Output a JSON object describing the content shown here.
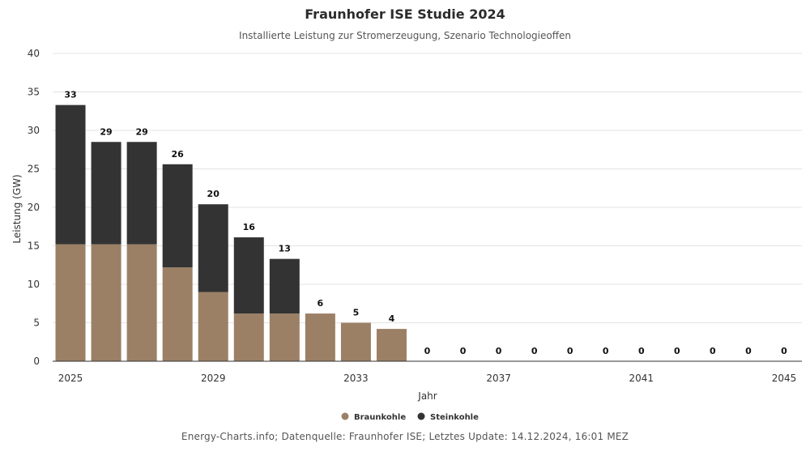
{
  "chart_data": {
    "type": "bar",
    "stacked": true,
    "title": "Fraunhofer ISE Studie 2024",
    "subtitle": "Installierte Leistung zur Stromerzeugung, Szenario Technologieoffen",
    "xlabel": "Jahr",
    "ylabel": "Leistung (GW)",
    "ylim": [
      0,
      40
    ],
    "yticks": [
      0,
      5,
      10,
      15,
      20,
      25,
      30,
      35,
      40
    ],
    "categories": [
      2025,
      2026,
      2027,
      2028,
      2029,
      2030,
      2031,
      2032,
      2033,
      2034,
      2035,
      2036,
      2037,
      2038,
      2039,
      2040,
      2041,
      2042,
      2043,
      2044,
      2045
    ],
    "xtick_labels": [
      "2025",
      "2029",
      "2033",
      "2037",
      "2041",
      "2045"
    ],
    "series": [
      {
        "name": "Braunkohle",
        "color": "#9b8066",
        "values": [
          15.2,
          15.2,
          15.2,
          12.2,
          9.0,
          6.2,
          6.2,
          6.2,
          5.0,
          4.2,
          0,
          0,
          0,
          0,
          0,
          0,
          0,
          0,
          0,
          0,
          0
        ]
      },
      {
        "name": "Steinkohle",
        "color": "#333333",
        "values": [
          18.1,
          13.3,
          13.3,
          13.4,
          11.4,
          9.9,
          7.1,
          0,
          0,
          0,
          0,
          0,
          0,
          0,
          0,
          0,
          0,
          0,
          0,
          0,
          0
        ]
      }
    ],
    "totals_labels": [
      "33",
      "29",
      "29",
      "26",
      "20",
      "16",
      "13",
      "6",
      "5",
      "4",
      "0",
      "0",
      "0",
      "0",
      "0",
      "0",
      "0",
      "0",
      "0",
      "0",
      "0"
    ],
    "grid": true,
    "legend_position": "bottom"
  },
  "footer": "Energy-Charts.info; Datenquelle: Fraunhofer ISE; Letztes Update: 14.12.2024, 16:01 MEZ"
}
